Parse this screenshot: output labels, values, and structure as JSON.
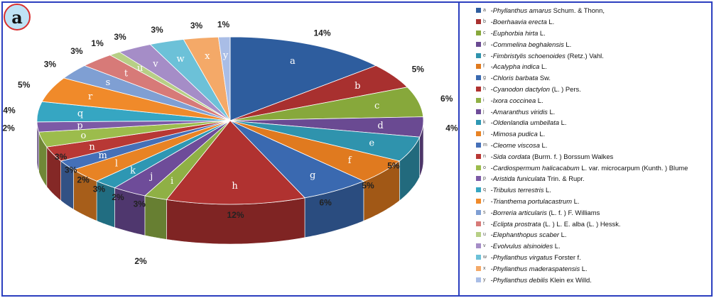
{
  "panel_label": "a",
  "chart_data": {
    "type": "pie",
    "title": "",
    "slices": [
      {
        "letter": "a",
        "species": "Phyllanthus amarus",
        "author": "Schum. & Thonn,",
        "value": 14,
        "label": "14%",
        "color": "#2e5d9e"
      },
      {
        "letter": "b",
        "species": "Boerhaavia erecta",
        "author": "L.",
        "value": 5,
        "label": "5%",
        "color": "#a8302f"
      },
      {
        "letter": "c",
        "species": "Euphorbia hirta",
        "author": "L.",
        "value": 6,
        "label": "6%",
        "color": "#87a83b"
      },
      {
        "letter": "d",
        "species": "Commelina beghalensis",
        "author": "L.",
        "value": 4,
        "label": "4%",
        "color": "#6a4a92"
      },
      {
        "letter": "e",
        "species": "Fimbristylis schoenoides",
        "author": "(Retz.) Vahl.",
        "value": 5,
        "label": "5%",
        "color": "#2f93ad"
      },
      {
        "letter": "f",
        "species": "Acalypha indica",
        "author": "L.",
        "value": 5,
        "label": "5%",
        "color": "#e07a1f"
      },
      {
        "letter": "g",
        "species": "Chloris barbata",
        "author": "Sw.",
        "value": 6,
        "label": "6%",
        "color": "#3a69b0"
      },
      {
        "letter": "h",
        "species": "Cyanodon dactylon",
        "author": "(L. ) Pers.",
        "value": 12,
        "label": "12%",
        "color": "#b03230"
      },
      {
        "letter": "i",
        "species": "Ixora coccinea",
        "author": "L.",
        "value": 2,
        "label": "",
        "color": "#8fb045"
      },
      {
        "letter": "j",
        "species": "Amaranthus viridis",
        "author": "L.",
        "value": 3,
        "label": "3%",
        "color": "#6e4c99"
      },
      {
        "letter": "k",
        "species": "Oldenlandia umbellata",
        "author": "L.",
        "value": 2,
        "label": "2%",
        "color": "#2e97b3"
      },
      {
        "letter": "l",
        "species": "Mimosa pudica",
        "author": "L.",
        "value": 3,
        "label": "3%",
        "color": "#e88324"
      },
      {
        "letter": "m",
        "species": "Cleome viscosa",
        "author": "L.",
        "value": 2,
        "label": "2%",
        "color": "#4570b8"
      },
      {
        "letter": "n",
        "species": "Sida cordata",
        "author": "(Burm. f. ) Borssum Walkes",
        "value": 3,
        "label": "3%",
        "color": "#b83835"
      },
      {
        "letter": "o",
        "species": "Cardiospermum halicacabum",
        "author": "L. var. microcarpum (Kunth. ) Blume",
        "value": 3,
        "label": "3%",
        "color": "#9cbc4c"
      },
      {
        "letter": "p",
        "species": "Aristida funiculata",
        "author": "Trin. & Rupr.",
        "value": 2,
        "label": "2%",
        "color": "#7c5aa6"
      },
      {
        "letter": "q",
        "species": "Tribulus terrestris",
        "author": "L.",
        "value": 4,
        "label": "4%",
        "color": "#36a6c2"
      },
      {
        "letter": "r",
        "species": "Trianthema portulacastrum",
        "author": "L.",
        "value": 5,
        "label": "5%",
        "color": "#f08a2a"
      },
      {
        "letter": "s",
        "species": "Borreria articularis",
        "author": "(L. f. ) F. Williams",
        "value": 3,
        "label": "3%",
        "color": "#7f9fd3"
      },
      {
        "letter": "t",
        "species": "Eclipta prostrata",
        "author": "(L. ) L. E. alba (L. ) Hessk.",
        "value": 3,
        "label": "3%",
        "color": "#d77a78"
      },
      {
        "letter": "u",
        "species": "Elephanthopus scaber",
        "author": "L.",
        "value": 1,
        "label": "1%",
        "color": "#b7cf86"
      },
      {
        "letter": "v",
        "species": "Evolvulus alsinoides",
        "author": "L.",
        "value": 3,
        "label": "3%",
        "color": "#a58dc7"
      },
      {
        "letter": "w",
        "species": "Phyllanthus virgatus",
        "author": "Forster f.",
        "value": 3,
        "label": "3%",
        "color": "#6cc1d8"
      },
      {
        "letter": "x",
        "species": "Phyllanthus maderaspatensis",
        "author": "L.",
        "value": 3,
        "label": "3%",
        "color": "#f4a968"
      },
      {
        "letter": "y",
        "species": "Phyllanthus debilis",
        "author": "Klein ex Willd.",
        "value": 1,
        "label": "1%",
        "color": "#a9bde6"
      }
    ],
    "extra_labels": [
      "2%"
    ]
  }
}
